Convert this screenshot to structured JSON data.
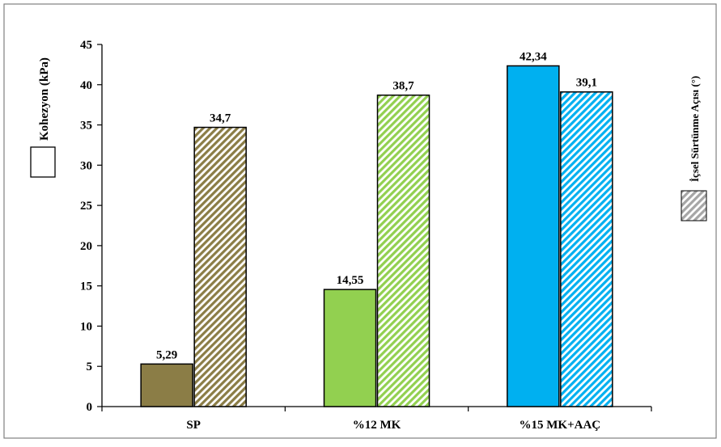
{
  "chart_data": {
    "type": "bar",
    "categories": [
      "SP",
      "%12 MK",
      "%15 MK+AAÇ"
    ],
    "series": [
      {
        "name": "Kohezyon (kPa)",
        "values": [
          5.29,
          14.55,
          42.34
        ],
        "value_labels": [
          "5,29",
          "14,55",
          "42,34"
        ],
        "pattern": "solid",
        "colors": [
          "#8b7d46",
          "#92d050",
          "#00b0f0"
        ]
      },
      {
        "name": "İçsel Sürtünme Açısı (°)",
        "values": [
          34.7,
          38.7,
          39.1
        ],
        "value_labels": [
          "34,7",
          "38,7",
          "39,1"
        ],
        "pattern": "hatched",
        "colors": [
          "#8b7d46",
          "#92d050",
          "#00b0f0"
        ]
      }
    ],
    "y_ticks": [
      "0",
      "5",
      "10",
      "15",
      "20",
      "25",
      "30",
      "35",
      "40",
      "45"
    ],
    "ylim": [
      0,
      45
    ],
    "legend": [
      {
        "label": "Kohezyon (kPa)",
        "swatch": "solid",
        "position": "left"
      },
      {
        "label": "İçsel Sürtünme Açısı (°)",
        "swatch": "hatched",
        "position": "right"
      }
    ],
    "grid": false
  }
}
